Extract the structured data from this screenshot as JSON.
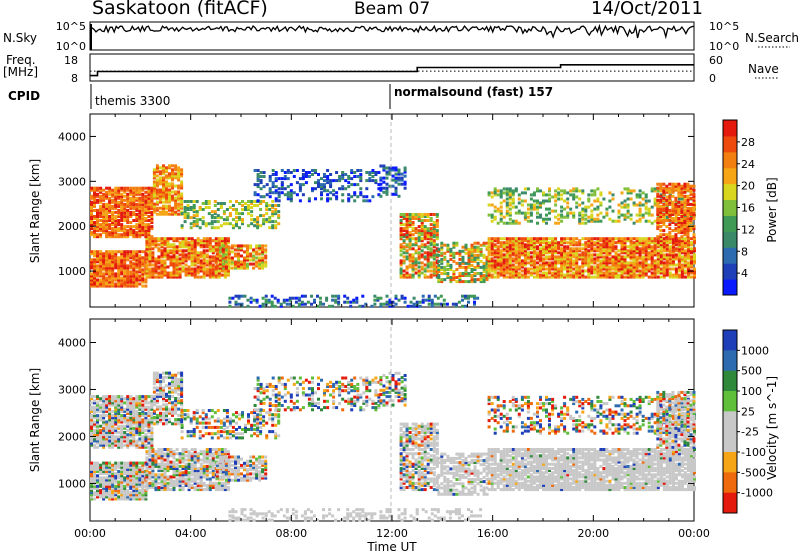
{
  "header": {
    "station": "Saskatoon (fitACF)",
    "beam": "Beam 07",
    "date": "14/Oct/2011"
  },
  "side_labels": {
    "nsky": "N.Sky",
    "freq_line1": "Freq.",
    "freq_line2": "[MHz]",
    "cpid": "CPID",
    "nsearch": "N.Search",
    "nave": "Nave"
  },
  "colors": {
    "power_scale": [
      "#0a1aff",
      "#1f3fb8",
      "#2d6bb0",
      "#3a8a6a",
      "#3f9a55",
      "#7fbf3a",
      "#d8d61f",
      "#f5a516",
      "#f27f10",
      "#ee4a0c",
      "#e41a0c"
    ],
    "velocity_scale": [
      "#1f3fb8",
      "#2d6bb0",
      "#2e8a3a",
      "#5fbf3a",
      "#c8c8c8",
      "#c8c8c8",
      "#f5a516",
      "#ee6a0c",
      "#e41a0c"
    ]
  },
  "chart_data": [
    {
      "type": "line",
      "name": "nsky-nsearch",
      "ylabels": [
        "10^5",
        "10^0"
      ],
      "ylabels_right": [
        "10^5",
        "10^0"
      ]
    },
    {
      "type": "line",
      "name": "freq-nave",
      "yticks_left": [
        "18",
        "8"
      ],
      "yticks_right": [
        "60",
        "0"
      ],
      "freq_mhz": {
        "x": [
          0.0,
          0.3,
          0.3,
          7.0,
          13.0,
          13.0,
          14.0,
          15.8,
          15.8,
          18.7,
          18.7,
          24.0
        ],
        "y": [
          10.0,
          10.0,
          11.5,
          11.5,
          11.5,
          13.0,
          13.0,
          13.0,
          13.0,
          13.0,
          14.0,
          14.0
        ]
      },
      "nave": {
        "x": [
          0.0,
          2.0,
          6.0,
          10.0,
          13.0,
          16.0,
          20.0,
          24.0
        ],
        "y": [
          22,
          22,
          22,
          22,
          22,
          22,
          22,
          22
        ]
      }
    },
    {
      "type": "table",
      "name": "cpid",
      "entries": [
        {
          "time": 0.1,
          "label": "themis 3300"
        },
        {
          "time": 11.95,
          "label": "normalsound (fast) 157"
        }
      ]
    },
    {
      "type": "heatmap",
      "name": "power",
      "ylabel": "Slant Range [km]",
      "yticks": [
        1000,
        2000,
        3000,
        4000
      ],
      "ylim": [
        200,
        4500
      ],
      "colorbar_label": "Power [dB]",
      "colorbar_ticks": [
        4,
        8,
        12,
        16,
        20,
        24,
        28
      ],
      "colorbar_range": [
        0,
        32
      ]
    },
    {
      "type": "heatmap",
      "name": "velocity",
      "ylabel": "Slant Range [km]",
      "yticks": [
        1000,
        2000,
        3000,
        4000
      ],
      "ylim": [
        200,
        4500
      ],
      "colorbar_label": "Velocity [m s^-1]",
      "colorbar_ticks": [
        "1000",
        "500",
        "100",
        "25",
        "-25",
        "-100",
        "-500",
        "-1000"
      ],
      "xlabel": "Time UT",
      "xticks": [
        "00:00",
        "04:00",
        "08:00",
        "12:00",
        "16:00",
        "20:00",
        "00:00"
      ],
      "xlim": [
        0,
        24
      ]
    }
  ]
}
